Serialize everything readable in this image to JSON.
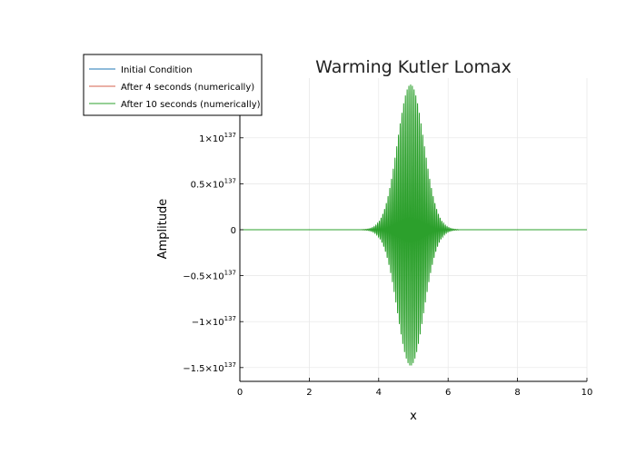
{
  "chart_data": {
    "type": "line",
    "title": "Warming Kutler Lomax",
    "xlabel": "x",
    "ylabel": "Amplitude",
    "xlim": [
      0,
      10
    ],
    "ylim": [
      -1.65e+137,
      1.65e+137
    ],
    "x_ticks": [
      {
        "value": 0,
        "label": "0"
      },
      {
        "value": 2,
        "label": "2"
      },
      {
        "value": 4,
        "label": "4"
      },
      {
        "value": 6,
        "label": "6"
      },
      {
        "value": 8,
        "label": "8"
      },
      {
        "value": 10,
        "label": "10"
      }
    ],
    "y_ticks": [
      {
        "value": 1e+137,
        "label": "1×10",
        "exp": "137"
      },
      {
        "value": 5e+136,
        "label": "0.5×10",
        "exp": "137"
      },
      {
        "value": 0,
        "label": "0",
        "exp": ""
      },
      {
        "value": -5e+136,
        "label": "−0.5×10",
        "exp": "137"
      },
      {
        "value": -1e+137,
        "label": "−1×10",
        "exp": "137"
      },
      {
        "value": -1.5e+137,
        "label": "−1.5×10",
        "exp": "137"
      }
    ],
    "grid": true,
    "legend_position": "top-left",
    "series": [
      {
        "name": "Initial Condition",
        "color": "#1f77b4",
        "description_values": {
          "x": [
            0,
            10
          ],
          "y": [
            0,
            0
          ]
        }
      },
      {
        "name": "After 4 seconds (numerically)",
        "color": "#d6604d",
        "description_values": {
          "x": [
            0,
            10
          ],
          "y": [
            0,
            0
          ]
        }
      },
      {
        "name": "After 10 seconds (numerically)",
        "color": "#2ca02c",
        "envelope": {
          "center": 4.92,
          "peak_positive": 1.58e+137,
          "peak_negative": -1.48e+137,
          "support_start": 3.5,
          "support_end": 6.3,
          "oscillation_period": 0.05
        }
      }
    ]
  }
}
